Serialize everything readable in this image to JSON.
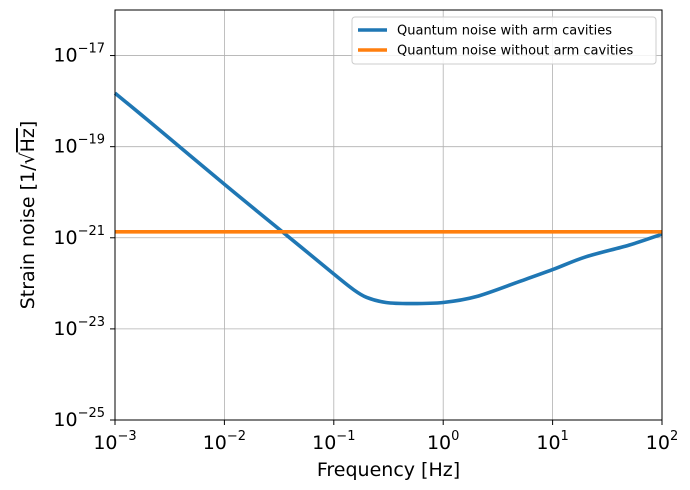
{
  "chart_data": {
    "type": "line",
    "xscale": "log",
    "yscale": "log",
    "xlim": [
      0.001,
      100
    ],
    "ylim": [
      1e-25,
      1e-16
    ],
    "grid": true,
    "legend_position": "top-right",
    "xlabel": "Frequency [Hz]",
    "ylabel_prefix": "Strain noise [1/",
    "ylabel_radical": "√",
    "ylabel_radicand": "Hz",
    "ylabel_suffix": "]",
    "x_ticks": [
      {
        "base": "10",
        "exp": "−3",
        "value": 0.001
      },
      {
        "base": "10",
        "exp": "−2",
        "value": 0.01
      },
      {
        "base": "10",
        "exp": "−1",
        "value": 0.1
      },
      {
        "base": "10",
        "exp": "0",
        "value": 1
      },
      {
        "base": "10",
        "exp": "1",
        "value": 10
      },
      {
        "base": "10",
        "exp": "2",
        "value": 100
      }
    ],
    "y_ticks": [
      {
        "base": "10",
        "exp": "−25",
        "value": 1e-25
      },
      {
        "base": "10",
        "exp": "−23",
        "value": 1e-23
      },
      {
        "base": "10",
        "exp": "−21",
        "value": 1e-21
      },
      {
        "base": "10",
        "exp": "−19",
        "value": 1e-19
      },
      {
        "base": "10",
        "exp": "−17",
        "value": 1e-17
      }
    ],
    "series": [
      {
        "name": "Quantum noise with arm cavities",
        "color": "#1f77b4",
        "x": [
          0.001,
          0.002,
          0.005,
          0.01,
          0.02,
          0.05,
          0.1,
          0.15,
          0.2,
          0.3,
          0.5,
          1,
          2,
          5,
          10,
          20,
          50,
          100
        ],
        "y": [
          1.5e-18,
          3.8e-19,
          6e-20,
          1.5e-20,
          3.8e-21,
          6.3e-22,
          1.6e-22,
          7.4e-23,
          4.9e-23,
          3.8e-23,
          3.6e-23,
          3.8e-23,
          5.1e-23,
          1.1e-22,
          2e-22,
          3.8e-22,
          6.9e-22,
          1.2e-21
        ]
      },
      {
        "name": "Quantum noise without arm cavities",
        "color": "#ff7f0e",
        "x": [
          0.001,
          100
        ],
        "y": [
          1.35e-21,
          1.35e-21
        ]
      }
    ]
  }
}
